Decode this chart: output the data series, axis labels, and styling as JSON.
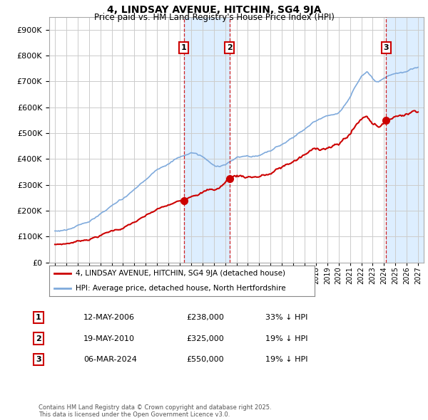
{
  "title": "4, LINDSAY AVENUE, HITCHIN, SG4 9JA",
  "subtitle": "Price paid vs. HM Land Registry's House Price Index (HPI)",
  "ylim": [
    0,
    950000
  ],
  "yticks": [
    0,
    100000,
    200000,
    300000,
    400000,
    500000,
    600000,
    700000,
    800000,
    900000
  ],
  "xlim_start": 1994.5,
  "xlim_end": 2027.5,
  "sale_dates": [
    2006.37,
    2010.38,
    2024.18
  ],
  "sale_prices": [
    238000,
    325000,
    550000
  ],
  "sale_labels": [
    "1",
    "2",
    "3"
  ],
  "hpi_color": "#7faadc",
  "price_color": "#cc0000",
  "sale_line_color": "#cc0000",
  "shade_color": "#ddeeff",
  "legend_label_price": "4, LINDSAY AVENUE, HITCHIN, SG4 9JA (detached house)",
  "legend_label_hpi": "HPI: Average price, detached house, North Hertfordshire",
  "table_rows": [
    [
      "1",
      "12-MAY-2006",
      "£238,000",
      "33% ↓ HPI"
    ],
    [
      "2",
      "19-MAY-2010",
      "£325,000",
      "19% ↓ HPI"
    ],
    [
      "3",
      "06-MAR-2024",
      "£550,000",
      "19% ↓ HPI"
    ]
  ],
  "footnote": "Contains HM Land Registry data © Crown copyright and database right 2025.\nThis data is licensed under the Open Government Licence v3.0.",
  "bg_color": "#ffffff",
  "grid_color": "#cccccc"
}
